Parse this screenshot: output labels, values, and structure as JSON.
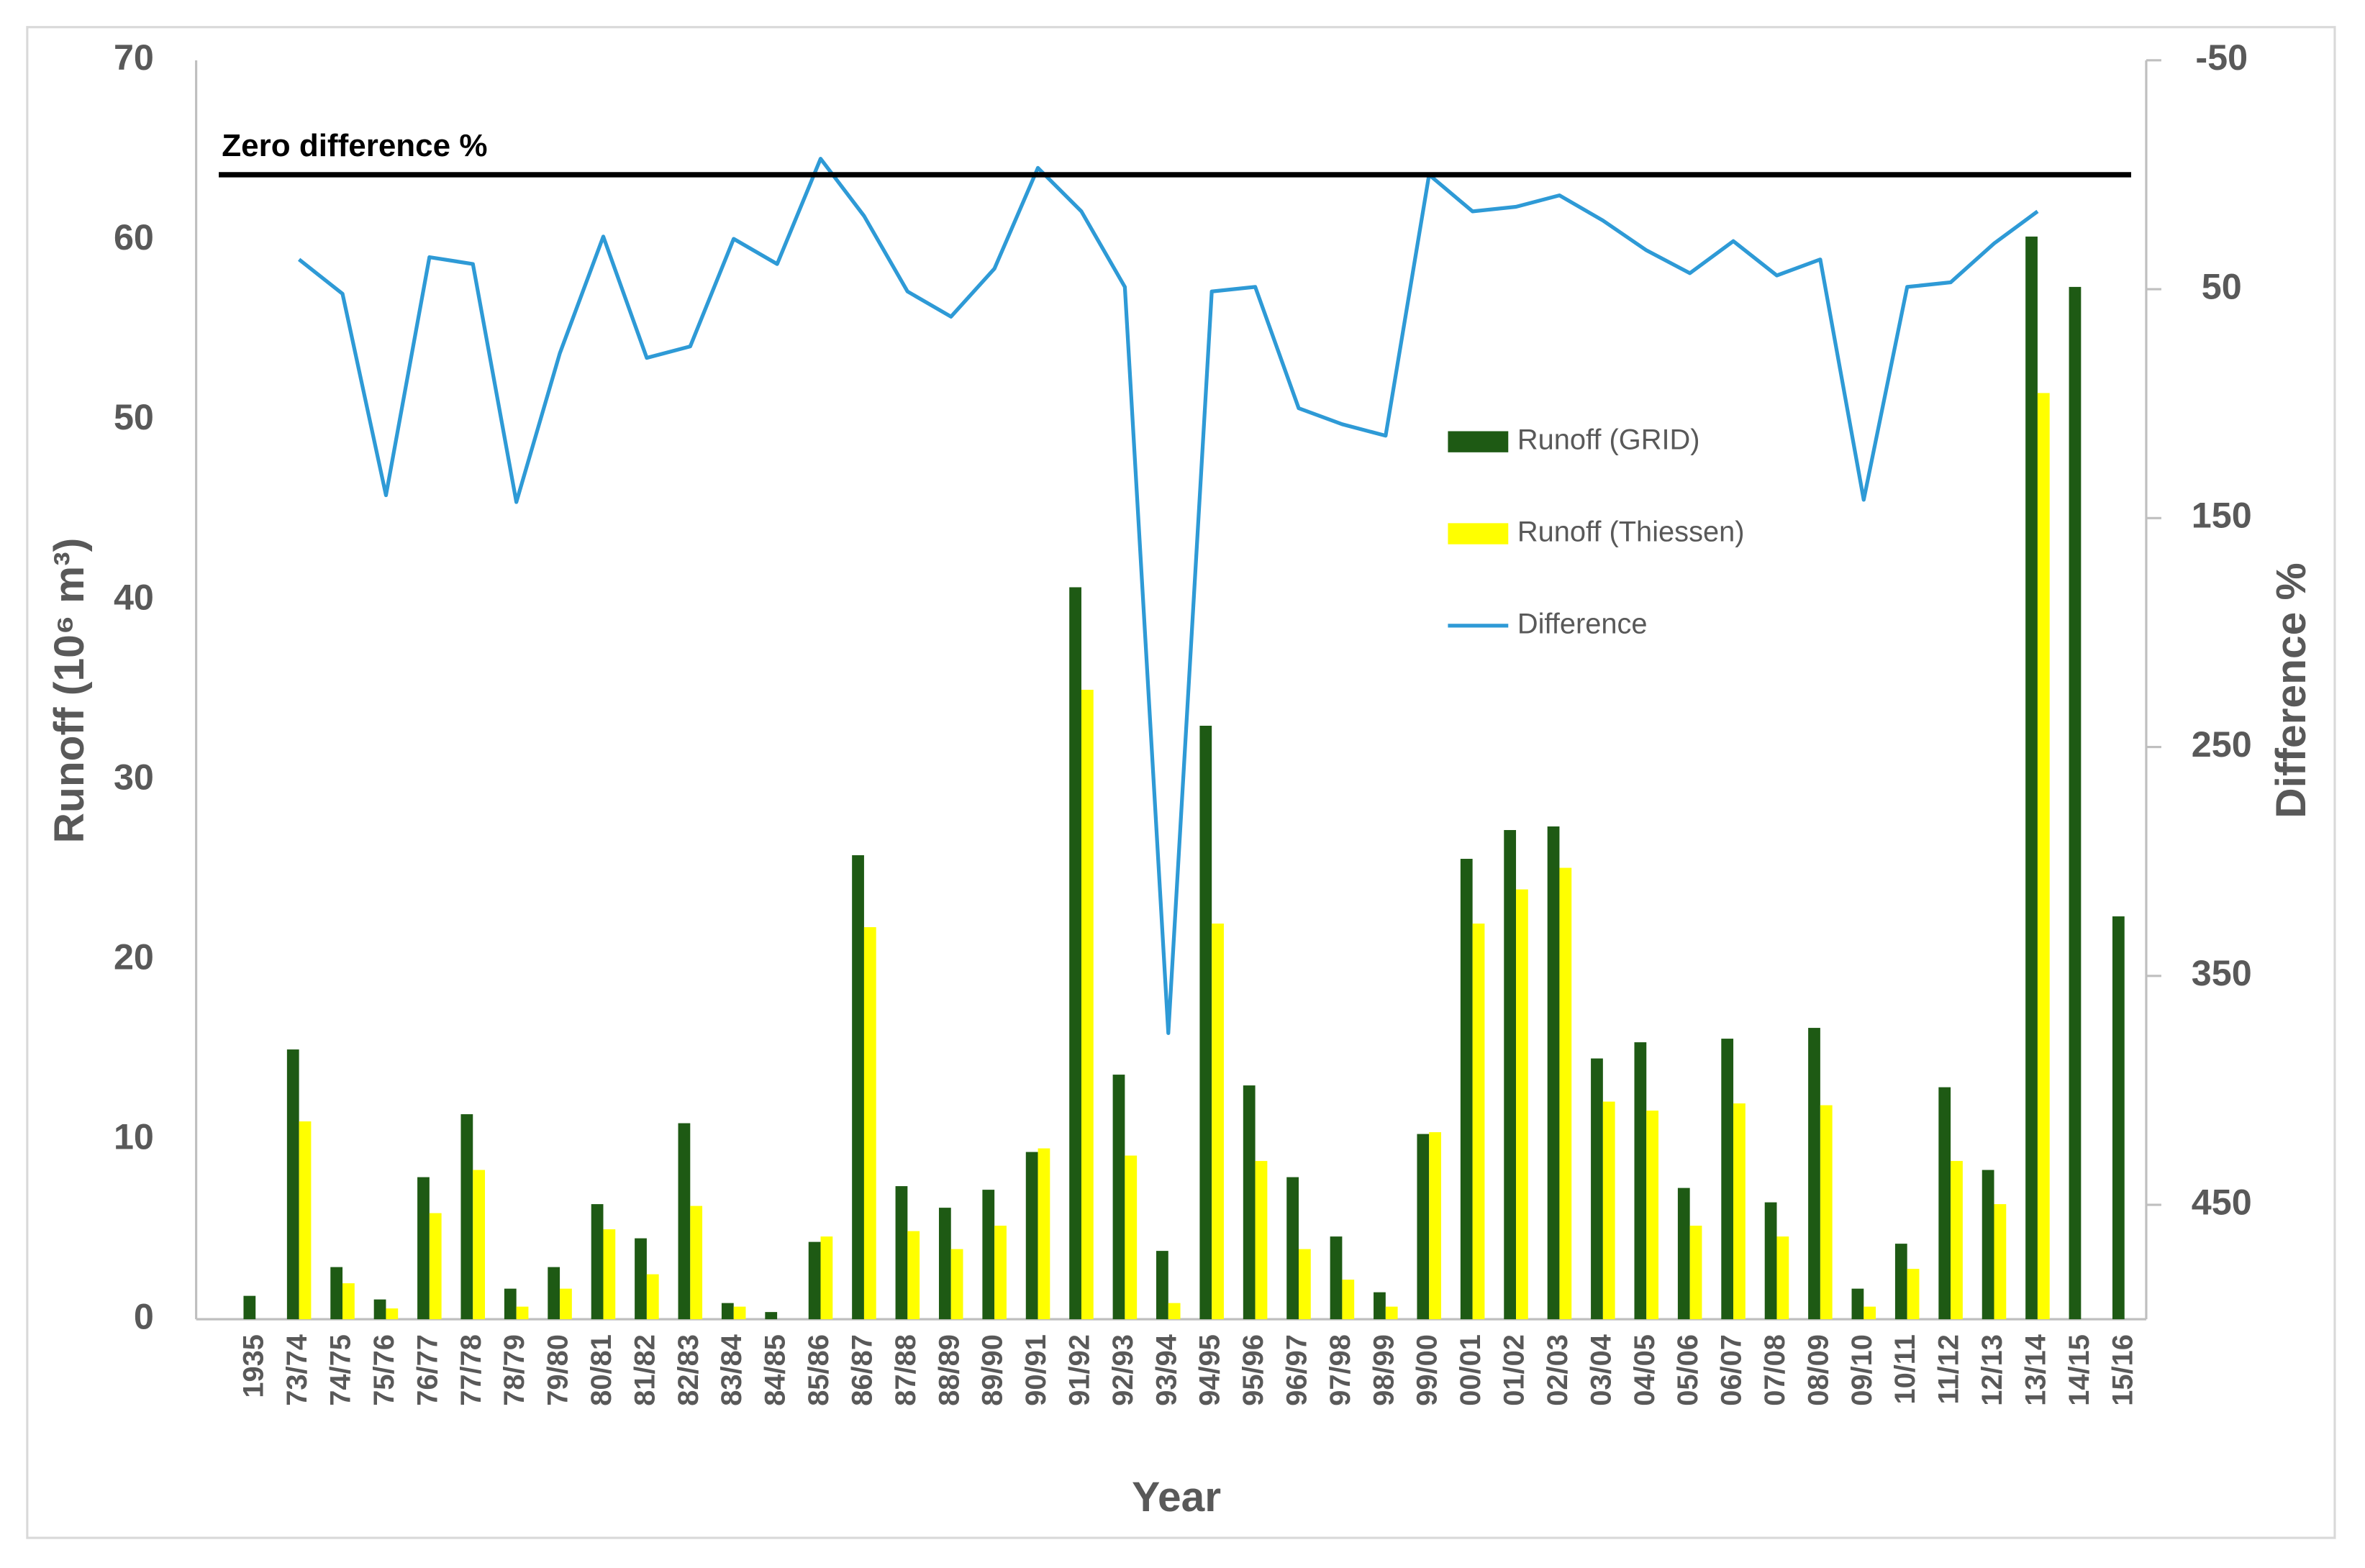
{
  "chart_data": {
    "type": "bar",
    "x_label": "Year",
    "y_label": "Runoff  (10⁶ m³)",
    "y2_label": "Difference %",
    "categories": [
      "1935",
      "73/74",
      "74/75",
      "75/76",
      "76/77",
      "77/78",
      "78/79",
      "79/80",
      "80/81",
      "81/82",
      "82/83",
      "83/84",
      "84/85",
      "85/86",
      "86/87",
      "87/88",
      "88/89",
      "89/90",
      "90/91",
      "91/92",
      "92/93",
      "93/94",
      "94/95",
      "95/96",
      "96/97",
      "97/98",
      "98/99",
      "99/00",
      "00/01",
      "01/02",
      "02/03",
      "03/04",
      "04/05",
      "05/06",
      "06/07",
      "07/08",
      "08/09",
      "09/10",
      "10/11",
      "11/12",
      "12/13",
      "13/14",
      "14/15",
      "15/16"
    ],
    "series": [
      {
        "name": "Runoff (GRID)",
        "type": "bar",
        "color": "#1e5a14",
        "values": [
          1.3,
          15.0,
          2.9,
          1.1,
          7.9,
          11.4,
          1.7,
          2.9,
          6.4,
          4.5,
          10.9,
          0.9,
          0.4,
          4.3,
          25.8,
          7.4,
          6.2,
          7.2,
          9.3,
          40.7,
          13.6,
          3.8,
          33.0,
          13.0,
          7.9,
          4.6,
          1.5,
          10.3,
          25.6,
          27.2,
          27.4,
          14.5,
          15.4,
          7.3,
          15.6,
          6.5,
          16.2,
          1.7,
          4.2,
          12.9,
          8.3,
          60.2,
          57.4,
          22.4
        ]
      },
      {
        "name": "Runoff (Thiessen)",
        "type": "bar",
        "color": "#ffff00",
        "values": [
          null,
          11.0,
          2.0,
          0.6,
          5.9,
          8.3,
          0.7,
          1.7,
          5.0,
          2.5,
          6.3,
          0.7,
          null,
          4.6,
          21.8,
          4.9,
          3.9,
          5.2,
          9.5,
          35.0,
          9.1,
          0.9,
          22.0,
          8.8,
          3.9,
          2.2,
          0.7,
          10.4,
          22.0,
          23.9,
          25.1,
          12.1,
          11.6,
          5.2,
          12.0,
          4.6,
          11.9,
          0.7,
          2.8,
          8.8,
          6.4,
          51.5,
          null,
          null
        ]
      },
      {
        "name": "Difference",
        "type": "line",
        "color": "#2e9ad6",
        "axis": "y2",
        "values": [
          null,
          37,
          52,
          140,
          36,
          39,
          143,
          78,
          27,
          80,
          75,
          28,
          39,
          -7,
          18,
          51,
          62,
          41,
          -3,
          16,
          49,
          375,
          51,
          49,
          102,
          109,
          114,
          0,
          16,
          14,
          9,
          20,
          33,
          43,
          29,
          44,
          37,
          142,
          49,
          47,
          30,
          16,
          null,
          null
        ]
      }
    ],
    "ylim": [
      0,
      70
    ],
    "yticks": [
      0,
      10,
      20,
      30,
      40,
      50,
      60,
      70
    ],
    "y2lim": [
      -50,
      500
    ],
    "y2_inverted": true,
    "y2ticks": [
      -50,
      50,
      150,
      250,
      350,
      450
    ],
    "reference_line": {
      "axis": "y2",
      "value": 0,
      "label": "Zero difference %",
      "color": "#000000"
    },
    "legend": "center-right",
    "grid": false
  }
}
